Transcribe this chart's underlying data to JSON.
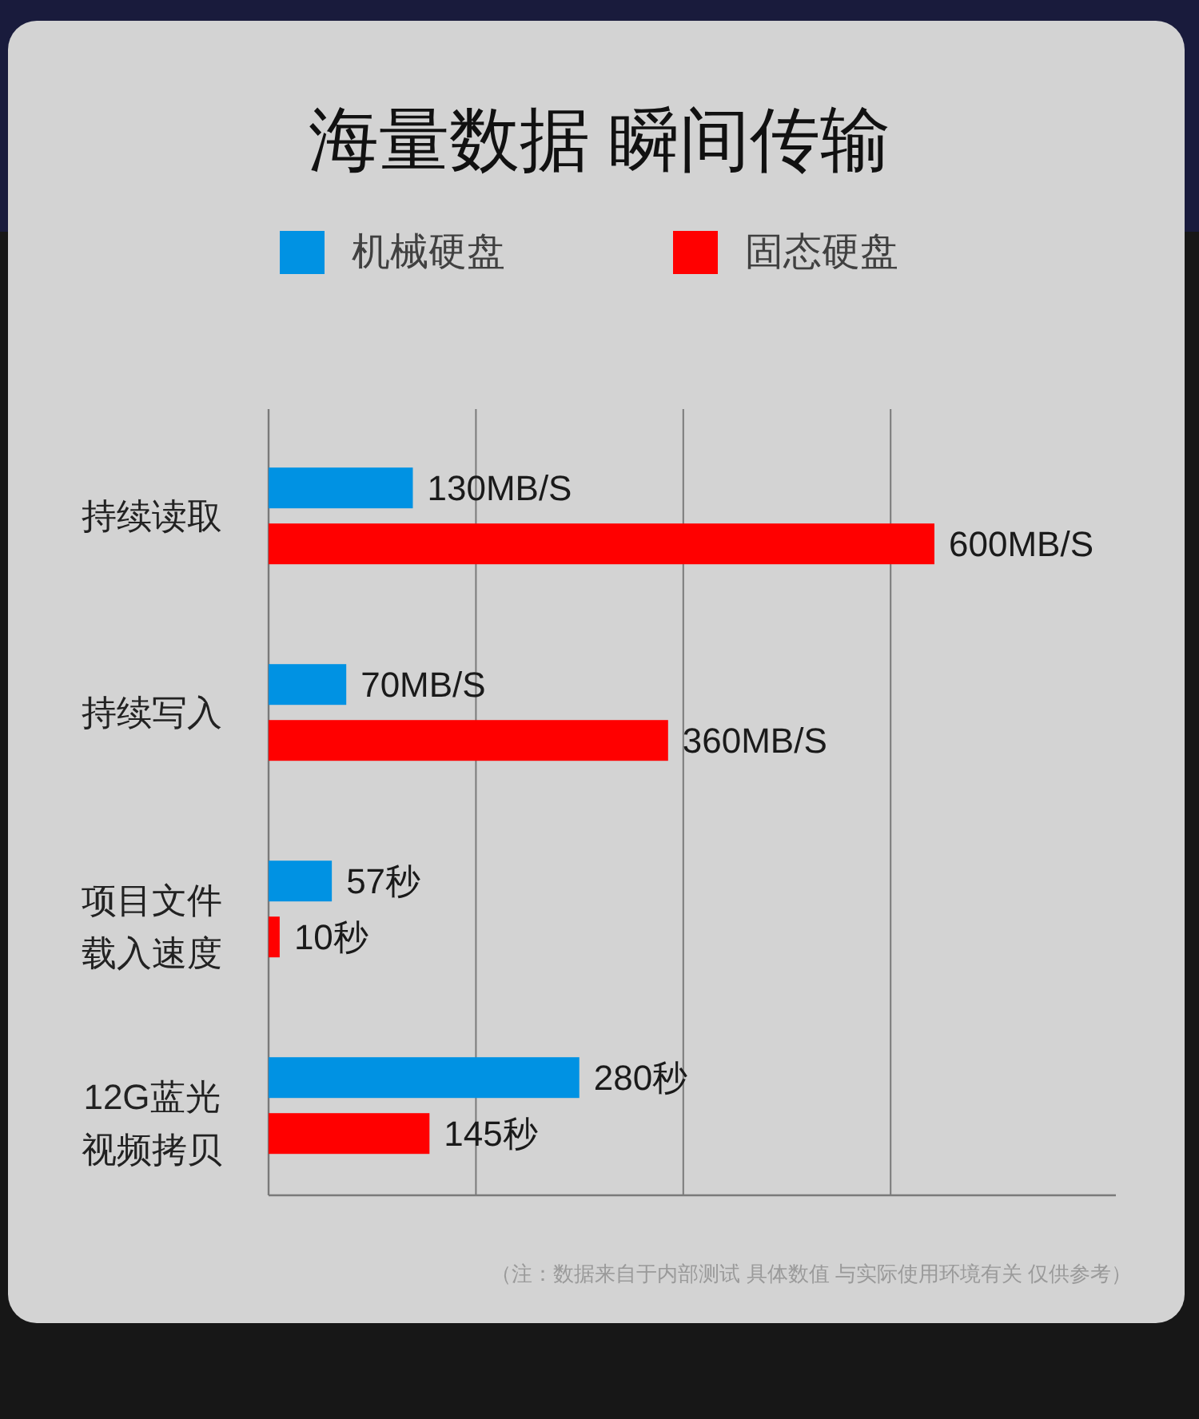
{
  "chart_data": {
    "type": "bar",
    "orientation": "horizontal",
    "title": "海量数据 瞬间传输",
    "categories": [
      "持续读取",
      "持续写入",
      "项目文件载入速度",
      "12G蓝光视频拷贝"
    ],
    "series": [
      {
        "name": "机械硬盘",
        "color": "#0092e3",
        "values": [
          130,
          70,
          57,
          280
        ],
        "value_labels": [
          "130MB/S",
          "70MB/S",
          "57秒",
          "280秒"
        ]
      },
      {
        "name": "固态硬盘",
        "color": "#ff0000",
        "values": [
          600,
          360,
          10,
          145
        ],
        "value_labels": [
          "600MB/S",
          "360MB/S",
          "10秒",
          "145秒"
        ]
      }
    ],
    "grid": "x",
    "legend": "top",
    "annotations": [
      "（注：数据来自于内部测试 具体数值 与实际使用环境有关 仅供参考）"
    ]
  }
}
